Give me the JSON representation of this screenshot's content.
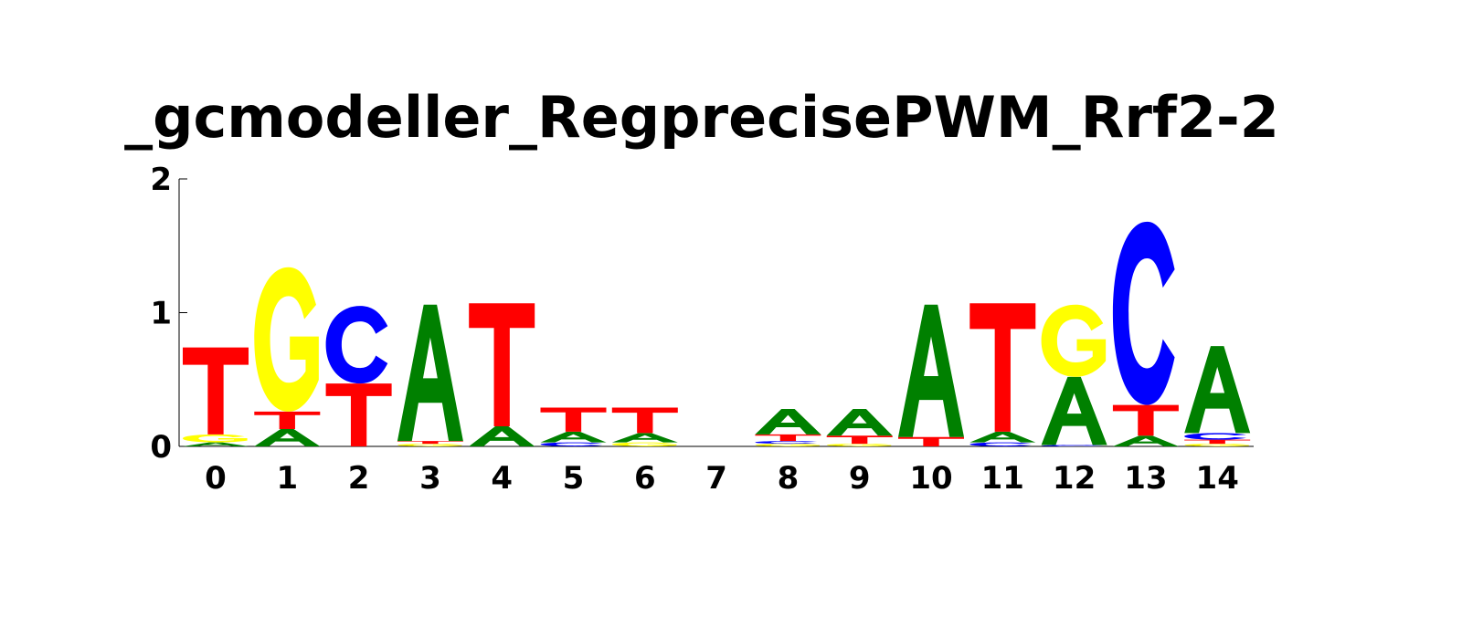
{
  "chart_data": {
    "type": "sequence-logo",
    "title": "_gcmodeller_RegprecisePWM_Rrf2-2",
    "ylim": [
      0,
      2
    ],
    "y_ticks": [
      "0",
      "1",
      "2"
    ],
    "colors": {
      "A": "#008000",
      "C": "#0000ff",
      "G": "#ffff00",
      "T": "#ff0000"
    },
    "positions": [
      {
        "label": "0",
        "stack": [
          {
            "base": "A",
            "height": 0.03
          },
          {
            "base": "G",
            "height": 0.06
          },
          {
            "base": "T",
            "height": 0.65
          }
        ]
      },
      {
        "label": "1",
        "stack": [
          {
            "base": "A",
            "height": 0.13
          },
          {
            "base": "T",
            "height": 0.13
          },
          {
            "base": "G",
            "height": 1.08
          }
        ]
      },
      {
        "label": "2",
        "stack": [
          {
            "base": "T",
            "height": 0.47
          },
          {
            "base": "C",
            "height": 0.58
          }
        ]
      },
      {
        "label": "3",
        "stack": [
          {
            "base": "G",
            "height": 0.02
          },
          {
            "base": "T",
            "height": 0.02
          },
          {
            "base": "A",
            "height": 1.02
          }
        ]
      },
      {
        "label": "4",
        "stack": [
          {
            "base": "A",
            "height": 0.15
          },
          {
            "base": "T",
            "height": 0.92
          }
        ]
      },
      {
        "label": "5",
        "stack": [
          {
            "base": "C",
            "height": 0.03
          },
          {
            "base": "A",
            "height": 0.08
          },
          {
            "base": "T",
            "height": 0.18
          }
        ]
      },
      {
        "label": "6",
        "stack": [
          {
            "base": "G",
            "height": 0.03
          },
          {
            "base": "A",
            "height": 0.07
          },
          {
            "base": "T",
            "height": 0.19
          }
        ]
      },
      {
        "label": "7",
        "stack": []
      },
      {
        "label": "8",
        "stack": [
          {
            "base": "G",
            "height": 0.02
          },
          {
            "base": "C",
            "height": 0.02
          },
          {
            "base": "T",
            "height": 0.05
          },
          {
            "base": "A",
            "height": 0.19
          }
        ]
      },
      {
        "label": "9",
        "stack": [
          {
            "base": "G",
            "height": 0.02
          },
          {
            "base": "T",
            "height": 0.06
          },
          {
            "base": "A",
            "height": 0.2
          }
        ]
      },
      {
        "label": "10",
        "stack": [
          {
            "base": "T",
            "height": 0.07
          },
          {
            "base": "A",
            "height": 0.99
          }
        ]
      },
      {
        "label": "11",
        "stack": [
          {
            "base": "C",
            "height": 0.03
          },
          {
            "base": "A",
            "height": 0.08
          },
          {
            "base": "T",
            "height": 0.96
          }
        ]
      },
      {
        "label": "12",
        "stack": [
          {
            "base": "C",
            "height": 0.01
          },
          {
            "base": "A",
            "height": 0.51
          },
          {
            "base": "G",
            "height": 0.54
          }
        ]
      },
      {
        "label": "13",
        "stack": [
          {
            "base": "A",
            "height": 0.08
          },
          {
            "base": "T",
            "height": 0.23
          },
          {
            "base": "C",
            "height": 1.37
          }
        ]
      },
      {
        "label": "14",
        "stack": [
          {
            "base": "G",
            "height": 0.02
          },
          {
            "base": "T",
            "height": 0.03
          },
          {
            "base": "C",
            "height": 0.05
          },
          {
            "base": "A",
            "height": 0.65
          }
        ]
      }
    ]
  }
}
